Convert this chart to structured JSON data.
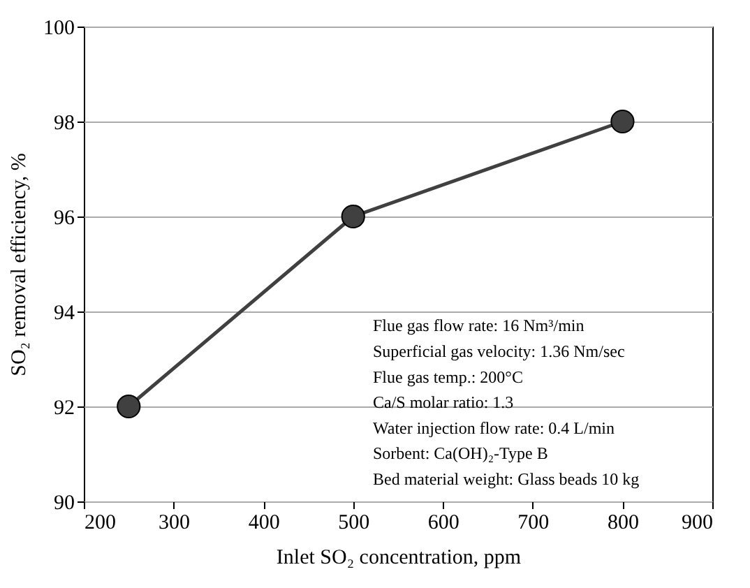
{
  "chart_data": {
    "type": "line",
    "xlabel": "Inlet SO₂ concentration, ppm",
    "ylabel": "SO₂ removal efficiency, %",
    "x": [
      250,
      500,
      800
    ],
    "series": [
      {
        "color": "#404040",
        "values": [
          92,
          96,
          98
        ]
      }
    ],
    "xlim": [
      200,
      900
    ],
    "xticks": [
      200,
      300,
      400,
      500,
      600,
      700,
      800,
      900
    ],
    "ylim": [
      90,
      100
    ],
    "yticks": [
      90,
      92,
      94,
      96,
      98,
      100
    ],
    "grid": "y",
    "marker": "circle",
    "line_style": "solid",
    "annotations": [
      "Flue gas flow rate: 16 Nm³/min",
      "Superficial gas velocity: 1.36 Nm/sec",
      "Flue gas temp.: 200°C",
      "Ca/S molar ratio: 1.3",
      "Water injection flow rate: 0.4 L/min",
      "Sorbent: Ca(OH)₂-Type B",
      "Bed material weight: Glass beads 10 kg"
    ]
  }
}
